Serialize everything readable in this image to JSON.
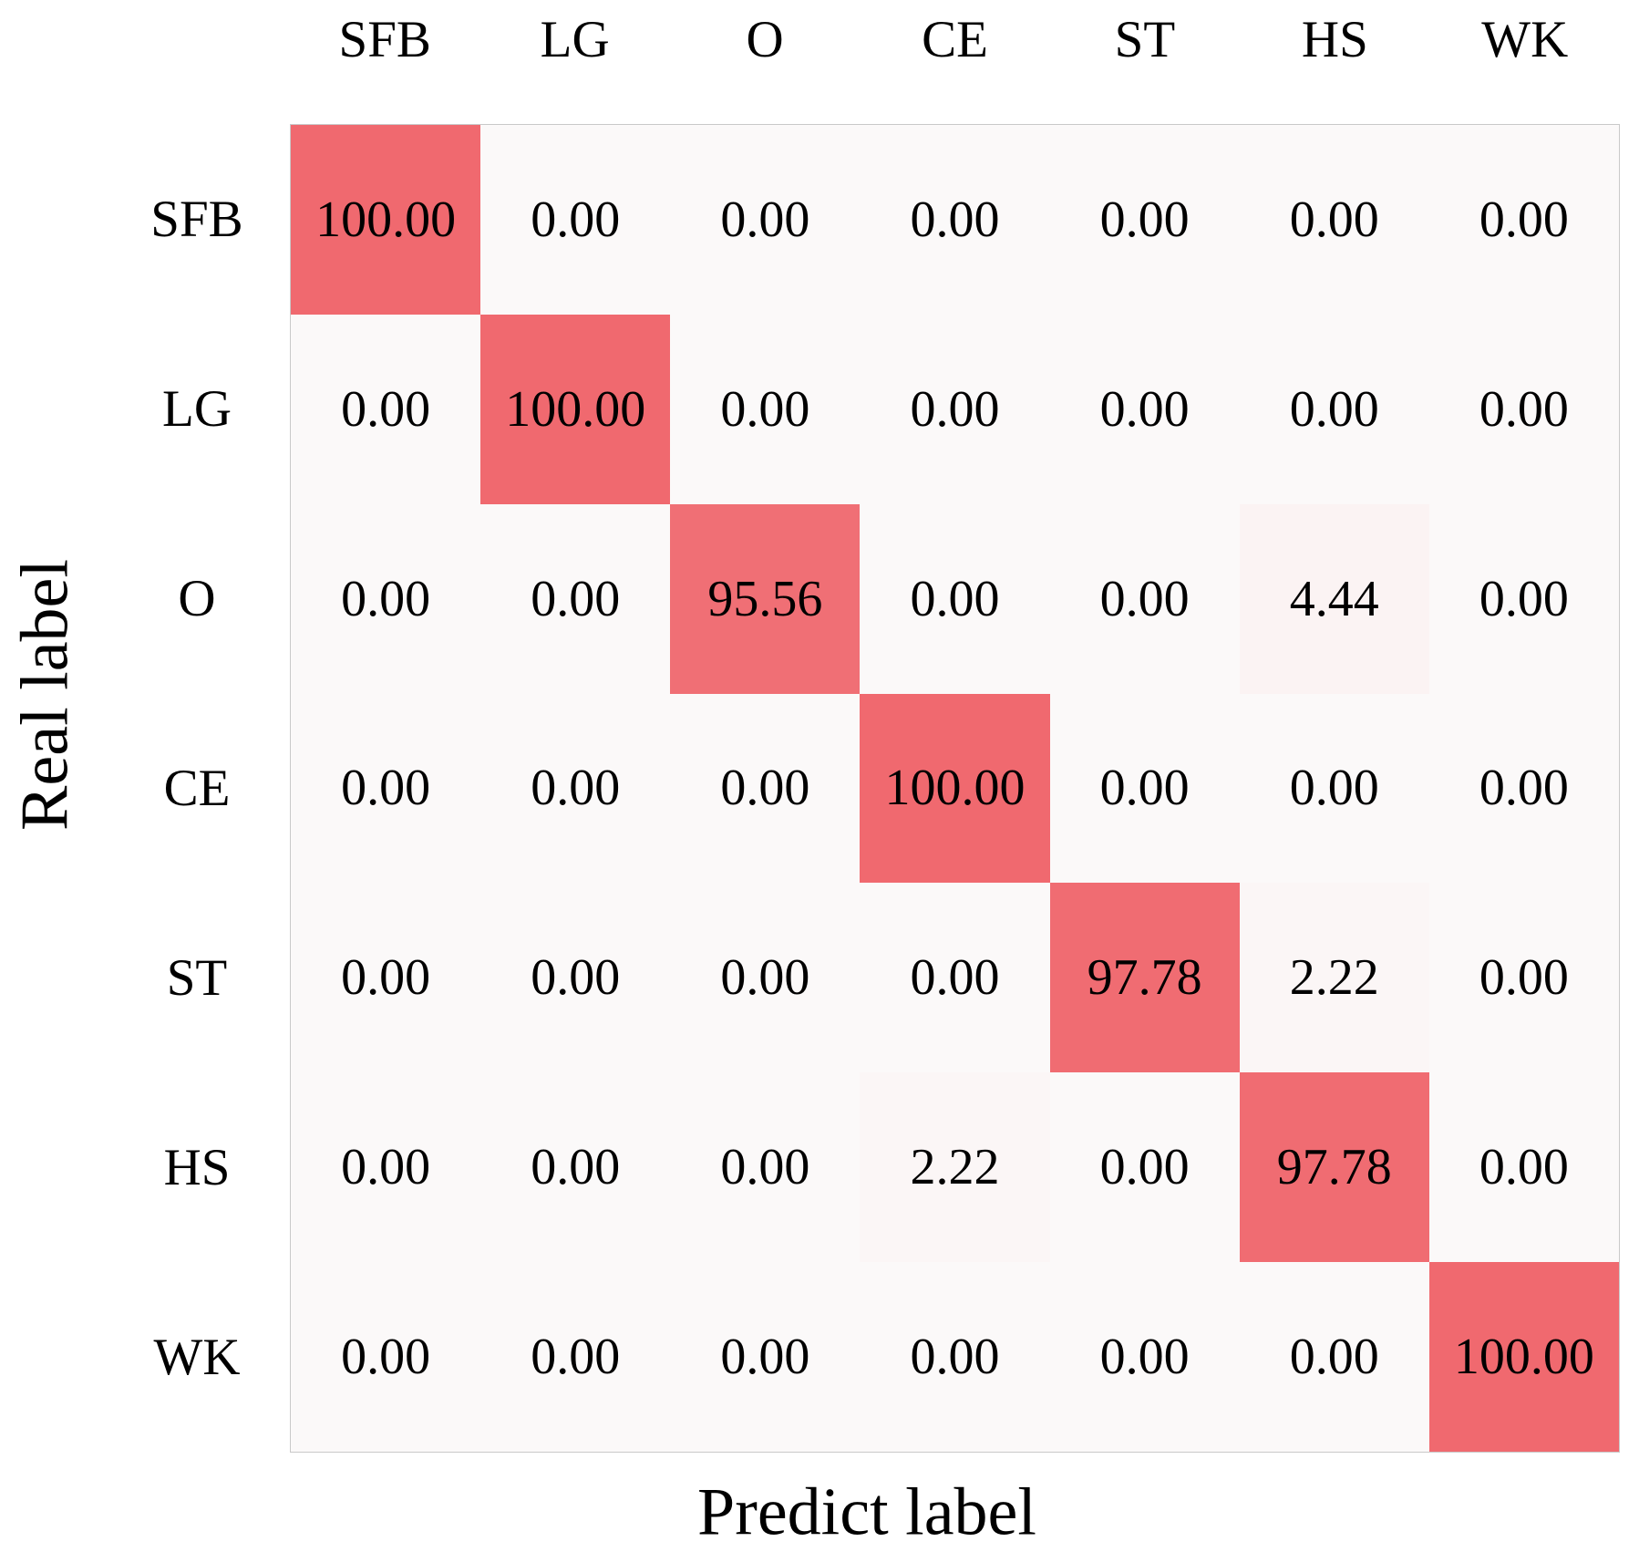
{
  "chart_data": {
    "type": "heatmap",
    "title": "",
    "xlabel": "Predict label",
    "ylabel": "Real label",
    "categories": [
      "SFB",
      "LG",
      "O",
      "CE",
      "ST",
      "HS",
      "WK"
    ],
    "row_label_axis": "Real label",
    "col_label_axis": "Predict label",
    "matrix": [
      [
        100.0,
        0.0,
        0.0,
        0.0,
        0.0,
        0.0,
        0.0
      ],
      [
        0.0,
        100.0,
        0.0,
        0.0,
        0.0,
        0.0,
        0.0
      ],
      [
        0.0,
        0.0,
        95.56,
        0.0,
        0.0,
        4.44,
        0.0
      ],
      [
        0.0,
        0.0,
        0.0,
        100.0,
        0.0,
        0.0,
        0.0
      ],
      [
        0.0,
        0.0,
        0.0,
        0.0,
        97.78,
        2.22,
        0.0
      ],
      [
        0.0,
        0.0,
        0.0,
        2.22,
        0.0,
        97.78,
        0.0
      ],
      [
        0.0,
        0.0,
        0.0,
        0.0,
        0.0,
        0.0,
        100.0
      ]
    ],
    "value_range": [
      0,
      100
    ],
    "value_decimals": 2,
    "colors": {
      "min_color": "#fbf9f9",
      "max_color": "#f0696f",
      "text_color": "#000000",
      "border_color": "#c9c9c9",
      "background": "#ffffff"
    },
    "grid": false,
    "legend": "none"
  }
}
